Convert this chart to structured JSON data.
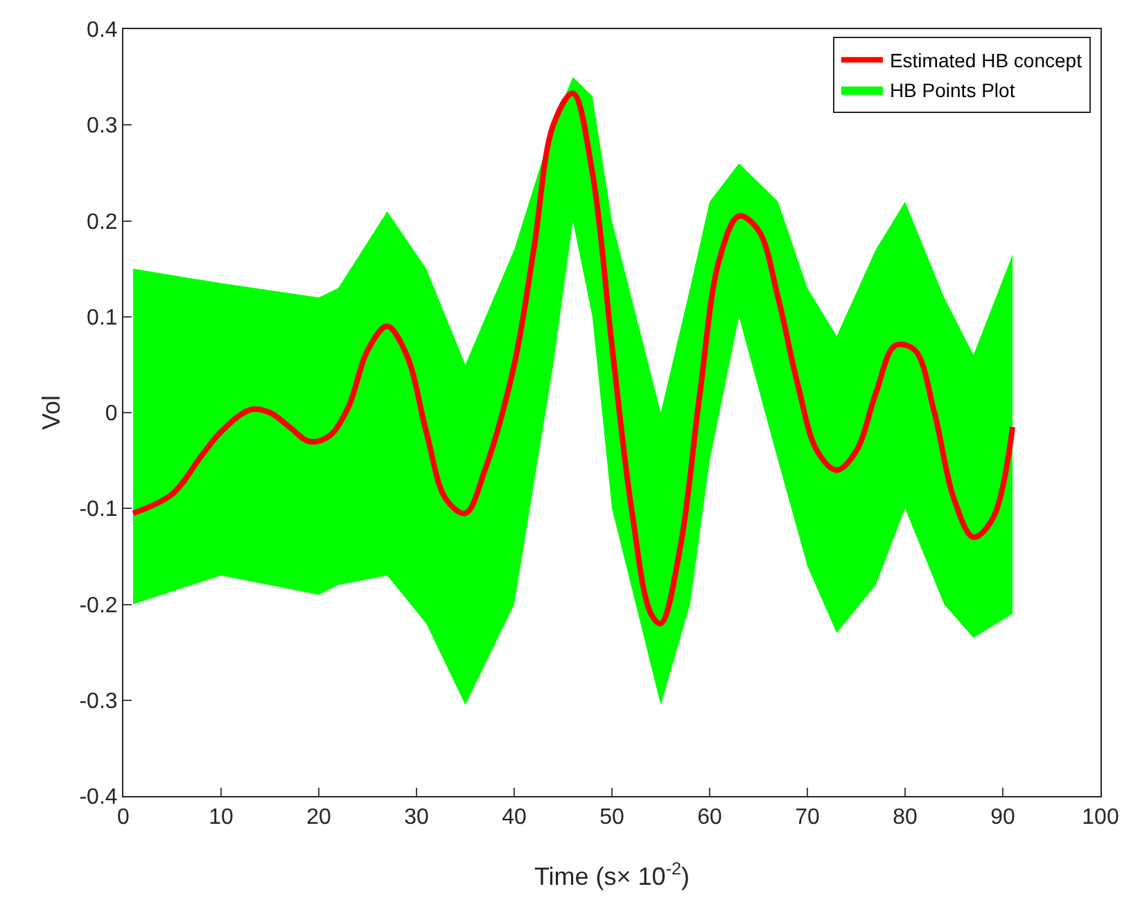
{
  "chart_data": {
    "type": "line",
    "xlabel": "Time (s× 10$^{-2}$)",
    "ylabel": "Vol",
    "xlim": [
      0,
      100
    ],
    "xticks": [
      0,
      10,
      20,
      30,
      40,
      50,
      60,
      70,
      80,
      90,
      100
    ],
    "ylim": [
      -0.4,
      0.4
    ],
    "yticks": [
      -0.4,
      -0.3,
      -0.2,
      -0.1,
      0,
      0.1,
      0.2,
      0.3,
      0.4
    ],
    "grid": false,
    "legend": "top right",
    "marker": "none",
    "line_style": "solid",
    "series": [
      {
        "name": "Estimated HB concept",
        "color": "#ff0000",
        "x": [
          1,
          5,
          8,
          10,
          13,
          15,
          17,
          19,
          21,
          23,
          25,
          27,
          29,
          31,
          33,
          35,
          37,
          40,
          42,
          44,
          46,
          48,
          50,
          52,
          54,
          55,
          57,
          59,
          61,
          63,
          65,
          67,
          69,
          71,
          73,
          75,
          77,
          79,
          81,
          83,
          85,
          87,
          89,
          91
        ],
        "values": [
          -0.105,
          -0.085,
          -0.045,
          -0.02,
          0.003,
          0.0,
          -0.015,
          -0.03,
          -0.025,
          0.005,
          0.065,
          0.09,
          0.06,
          -0.02,
          -0.09,
          -0.105,
          -0.06,
          0.05,
          0.17,
          0.3,
          0.333,
          0.25,
          0.07,
          -0.1,
          -0.21,
          -0.22,
          -0.14,
          0.02,
          0.16,
          0.205,
          0.19,
          0.12,
          0.03,
          -0.04,
          -0.06,
          -0.04,
          0.02,
          0.07,
          0.065,
          0.0,
          -0.09,
          -0.13,
          -0.11,
          -0.015
        ]
      },
      {
        "name": "HB Points Plot",
        "color": "#00ff00",
        "x": [
          1,
          10,
          20,
          22,
          27,
          31,
          35,
          40,
          44,
          46,
          48,
          50,
          55,
          58,
          60,
          63,
          67,
          70,
          73,
          77,
          80,
          84,
          87,
          91
        ],
        "values": [
          null,
          null,
          null,
          null,
          null,
          null,
          null,
          null,
          null,
          null,
          null,
          null,
          null,
          null,
          null,
          null,
          null,
          null,
          null,
          null,
          null,
          null,
          null,
          null
        ],
        "upper": [
          0.15,
          0.135,
          0.12,
          0.13,
          0.21,
          0.15,
          0.05,
          0.17,
          0.3,
          0.35,
          0.33,
          0.2,
          0.0,
          0.13,
          0.22,
          0.26,
          0.22,
          0.13,
          0.08,
          0.17,
          0.22,
          0.12,
          0.06,
          0.165
        ],
        "lower": [
          -0.2,
          -0.17,
          -0.19,
          -0.18,
          -0.17,
          -0.22,
          -0.305,
          -0.2,
          0.05,
          0.2,
          0.1,
          -0.1,
          -0.305,
          -0.2,
          -0.05,
          0.1,
          -0.05,
          -0.16,
          -0.23,
          -0.18,
          -0.1,
          -0.2,
          -0.235,
          -0.21
        ]
      }
    ]
  }
}
